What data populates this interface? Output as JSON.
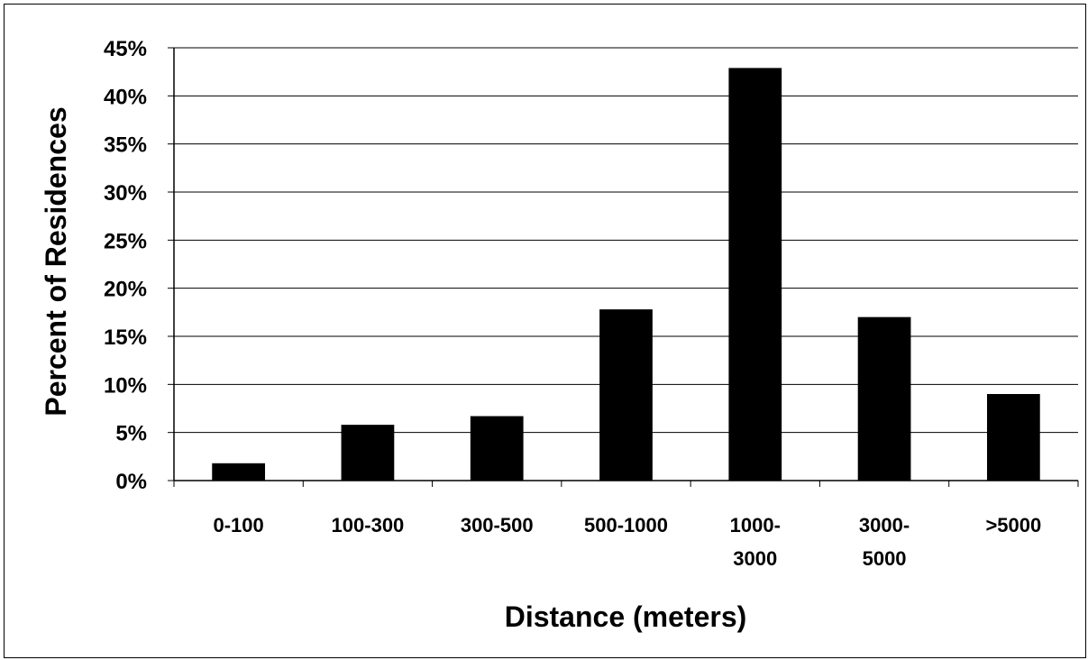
{
  "chart_data": {
    "type": "bar",
    "categories": [
      [
        "0-100"
      ],
      [
        "100-300"
      ],
      [
        "300-500"
      ],
      [
        "500-1000"
      ],
      [
        "1000-",
        "3000"
      ],
      [
        "3000-",
        "5000"
      ],
      [
        ">5000"
      ]
    ],
    "values": [
      1.8,
      5.8,
      6.7,
      17.8,
      42.9,
      17.0,
      9.0
    ],
    "ylim": [
      0,
      45
    ],
    "yticks": [
      {
        "value": 0,
        "label": "0%"
      },
      {
        "value": 5,
        "label": "5%"
      },
      {
        "value": 10,
        "label": "10%"
      },
      {
        "value": 15,
        "label": "15%"
      },
      {
        "value": 20,
        "label": "20%"
      },
      {
        "value": 25,
        "label": "25%"
      },
      {
        "value": 30,
        "label": "30%"
      },
      {
        "value": 35,
        "label": "35%"
      },
      {
        "value": 40,
        "label": "40%"
      },
      {
        "value": 45,
        "label": "45%"
      }
    ],
    "xlabel": "Distance (meters)",
    "ylabel": "Percent of Residences",
    "grid": true,
    "legend": "none",
    "bar_color": "#000000",
    "gridline_color": "#000000"
  }
}
